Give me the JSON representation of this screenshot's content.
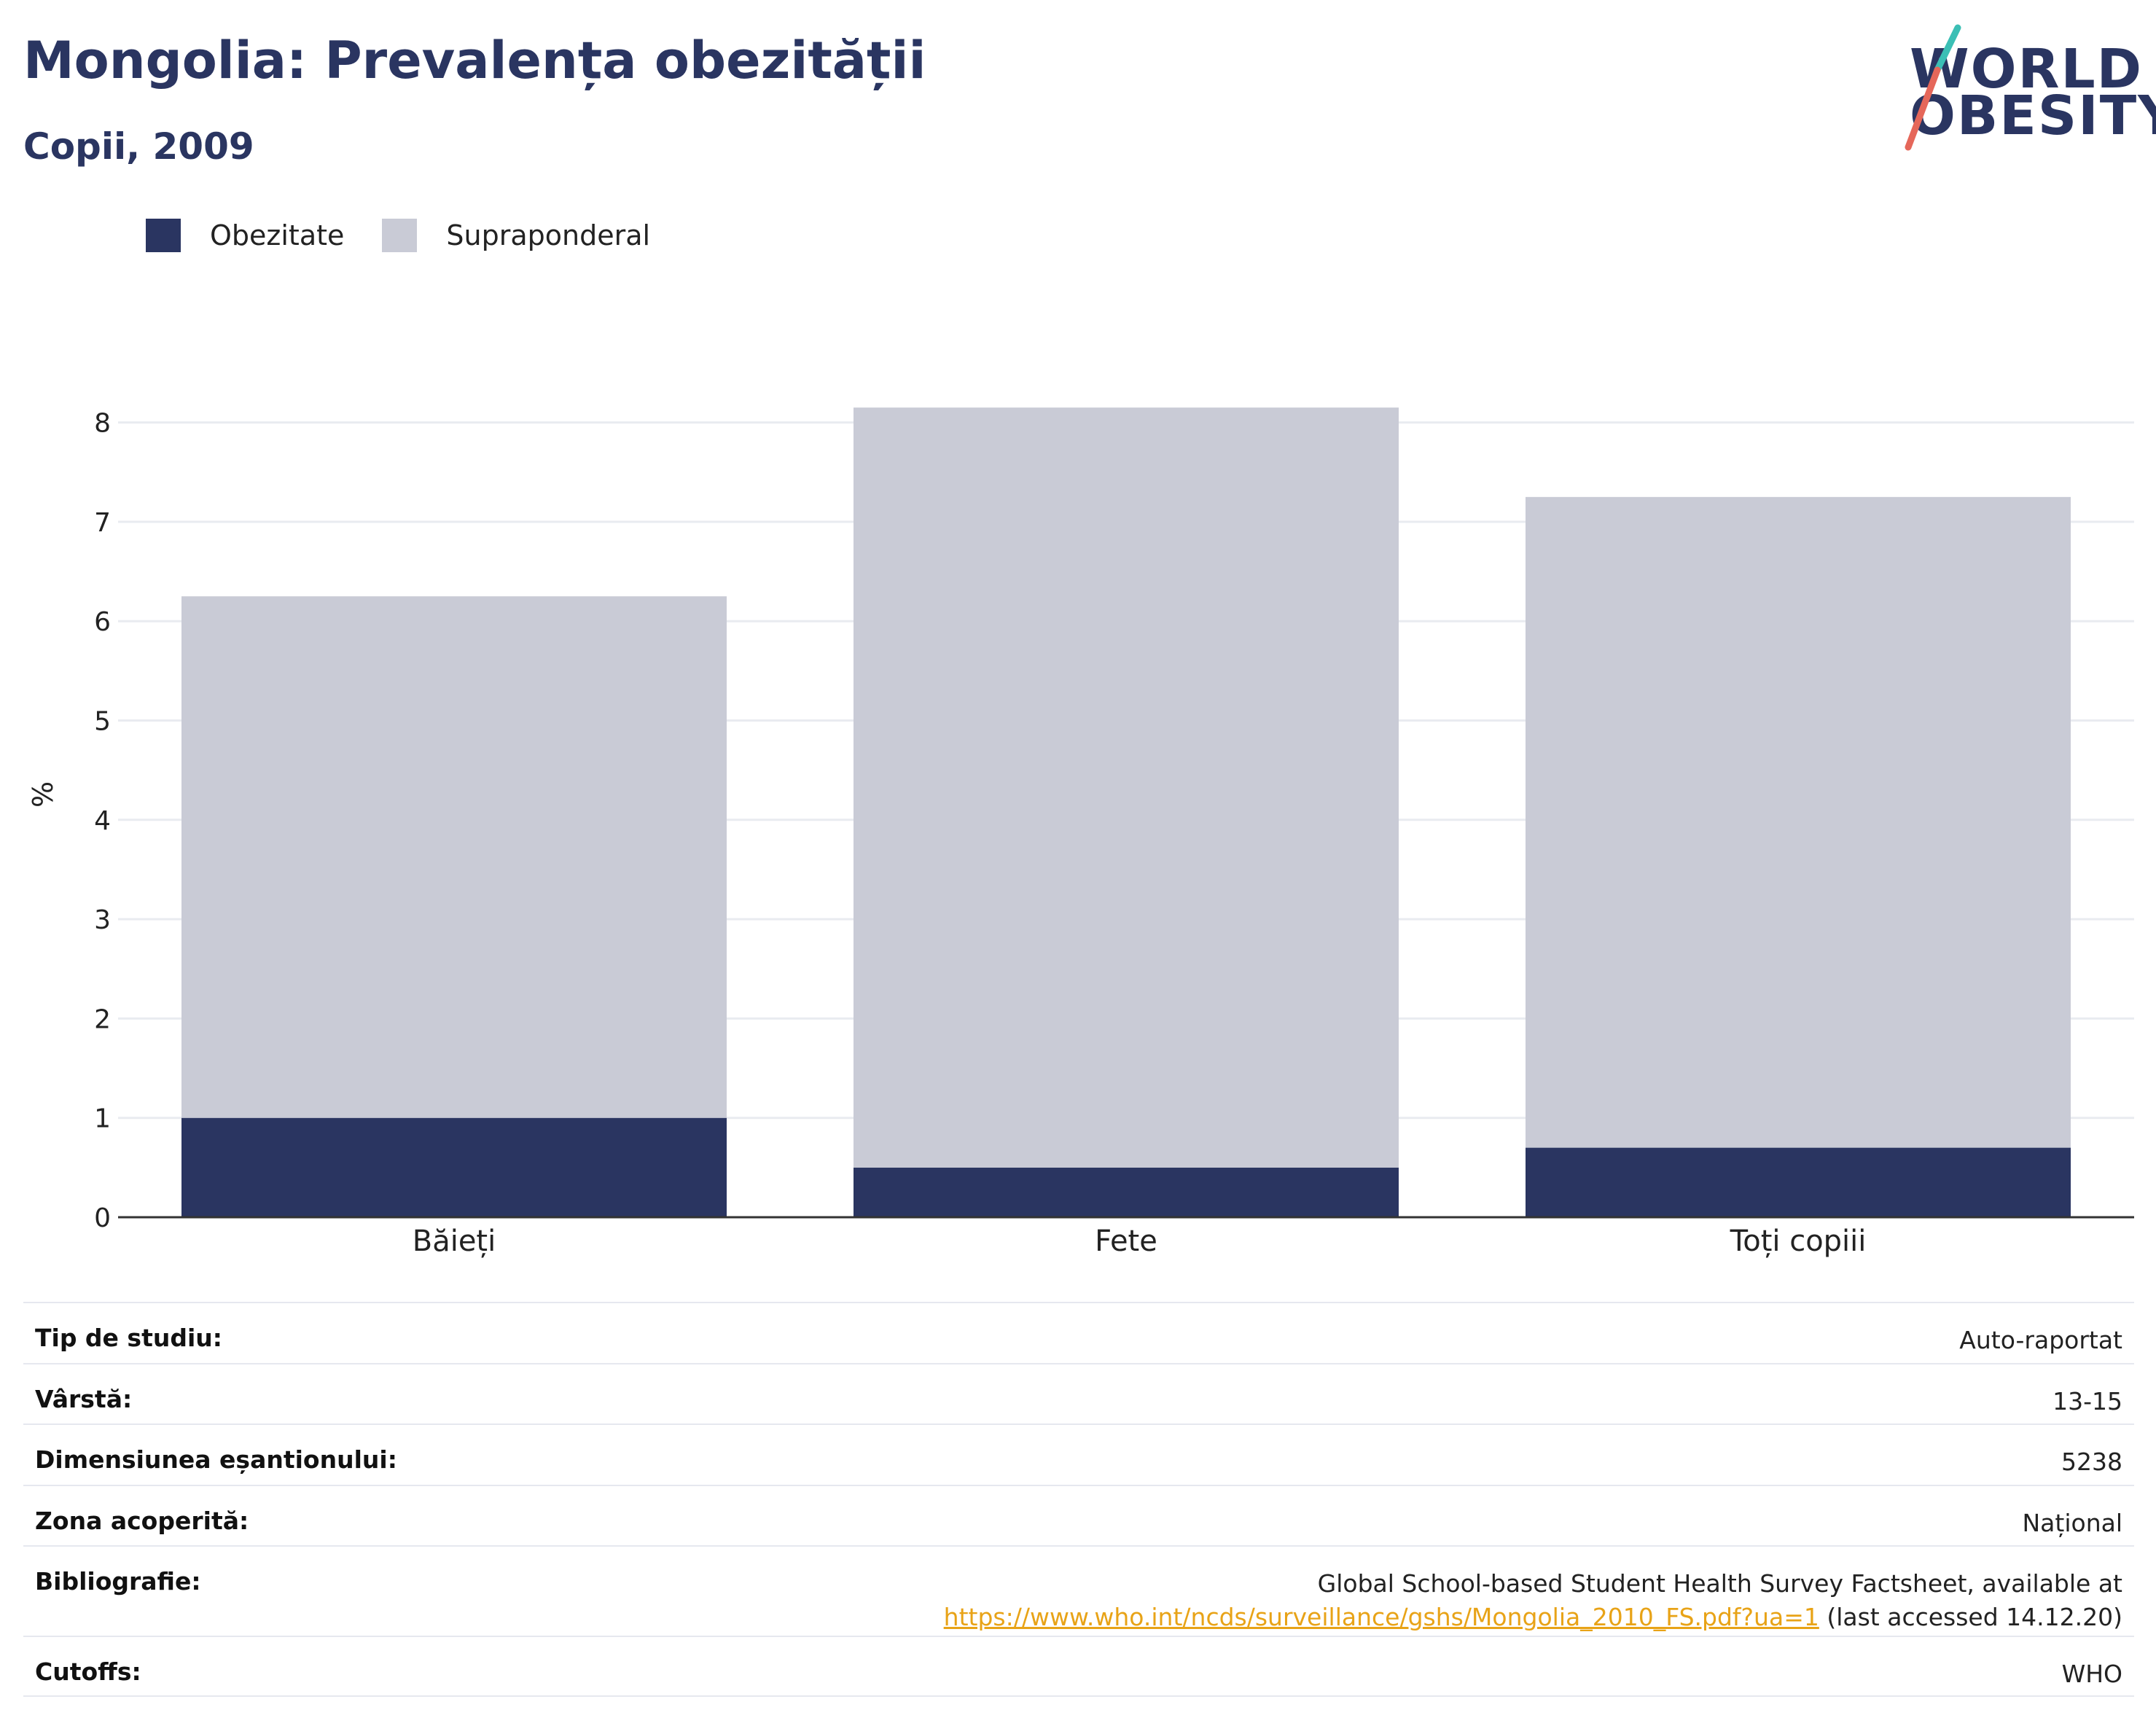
{
  "header": {
    "title": "Mongolia: Prevalența obezității",
    "subtitle": "Copii, 2009"
  },
  "logo": {
    "line1": "WORLD",
    "line2": "OBESITY"
  },
  "colors": {
    "obesity": "#2a3561",
    "overweight": "#c9cbd6",
    "title": "#2a3561",
    "link": "#e8a317",
    "logo_slash_top": "#3bbfb5",
    "logo_slash_bottom": "#e5675a"
  },
  "chart_data": {
    "type": "bar",
    "stacked": true,
    "categories": [
      "Băieți",
      "Fete",
      "Toți copiii"
    ],
    "series": [
      {
        "name": "Obezitate",
        "values": [
          1.0,
          0.5,
          0.7
        ]
      },
      {
        "name": "Supraponderal",
        "values": [
          5.25,
          7.65,
          6.55
        ]
      }
    ],
    "xlabel": "",
    "ylabel": "%",
    "ylim": [
      0,
      8.3
    ],
    "yticks": [
      0,
      1,
      2,
      3,
      4,
      5,
      6,
      7,
      8
    ],
    "grid": true,
    "legend_position": "top-left"
  },
  "table": [
    {
      "label": "Tip de studiu:",
      "value": "Auto-raportat"
    },
    {
      "label": "Vârstă:",
      "value": "13-15"
    },
    {
      "label": "Dimensiunea eșantionului:",
      "value": "5238"
    },
    {
      "label": "Zona acoperită:",
      "value": "Național"
    },
    {
      "label": "Bibliografie:",
      "value_line1": "Global School-based Student Health Survey Factsheet, available at",
      "link": "https://www.who.int/ncds/surveillance/gshs/Mongolia_2010_FS.pdf?ua=1",
      "link_suffix": " (last accessed 14.12.20)"
    },
    {
      "label": "Cutoffs:",
      "value": "WHO"
    }
  ]
}
